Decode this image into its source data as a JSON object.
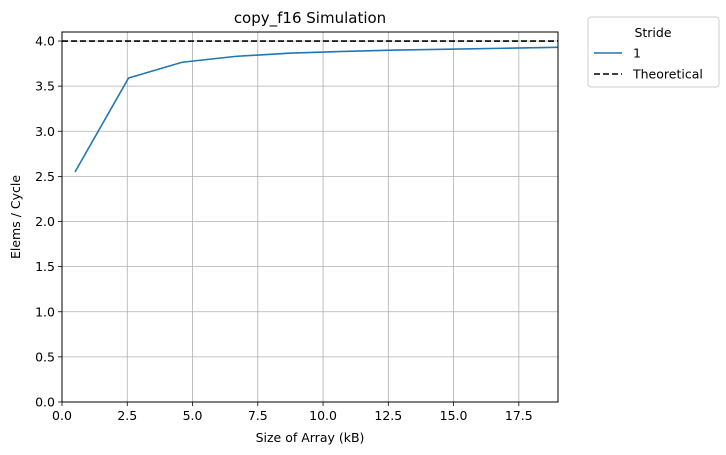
{
  "chart_data": {
    "type": "line",
    "title": "copy_f16 Simulation",
    "xlabel": "Size of Array (kB)",
    "ylabel": "Elems / Cycle",
    "xlim": [
      0,
      19
    ],
    "ylim": [
      0,
      4.1
    ],
    "xticks": [
      0,
      2.5,
      5,
      7.5,
      10,
      12.5,
      15,
      17.5
    ],
    "xtick_labels": [
      "0.0",
      "2.5",
      "5.0",
      "7.5",
      "10.0",
      "12.5",
      "15.0",
      "17.5"
    ],
    "yticks": [
      0,
      0.5,
      1,
      1.5,
      2,
      2.5,
      3,
      3.5,
      4
    ],
    "ytick_labels": [
      "0.0",
      "0.5",
      "1.0",
      "1.5",
      "2.0",
      "2.5",
      "3.0",
      "3.5",
      "4.0"
    ],
    "grid": true,
    "legend": {
      "title": "Stride",
      "placement": "outside-top-right"
    },
    "series": [
      {
        "name": "1",
        "style": "solid",
        "color": "#1f77b4",
        "x": [
          0.5,
          2.55,
          4.6,
          6.65,
          8.7,
          10.75,
          12.8,
          14.85,
          16.9,
          18.95,
          21
        ],
        "y": [
          2.55,
          3.59,
          3.765,
          3.83,
          3.865,
          3.885,
          3.9,
          3.91,
          3.92,
          3.93,
          3.94
        ]
      },
      {
        "name": "Theoretical",
        "style": "dashed",
        "color": "#000000",
        "x": [
          0,
          19
        ],
        "y": [
          4.0,
          4.0
        ]
      }
    ]
  }
}
